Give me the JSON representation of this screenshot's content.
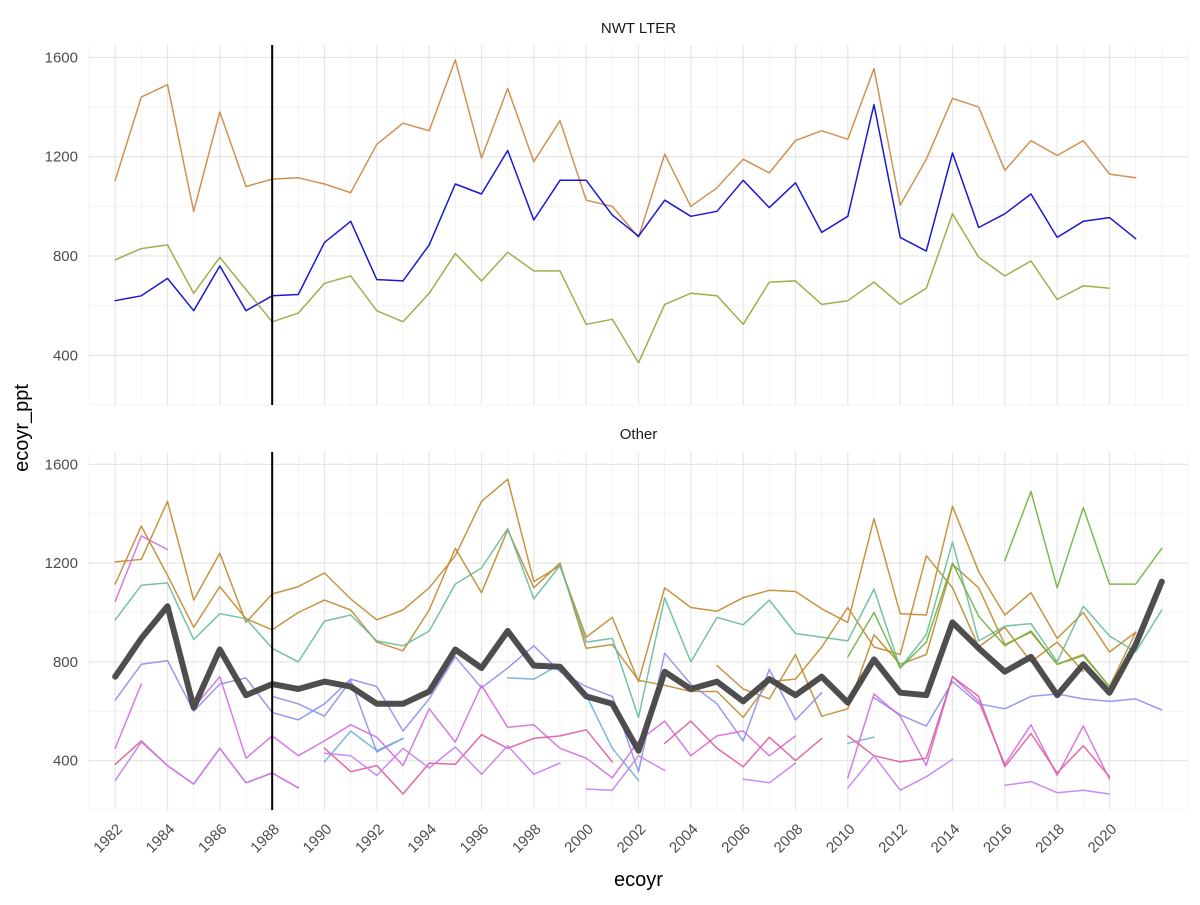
{
  "chart_data": {
    "type": "line",
    "facet_by": "panel",
    "xlabel": "ecoyr",
    "ylabel": "ecoyr_ppt",
    "x_ticks": [
      1982,
      1984,
      1986,
      1988,
      1990,
      1992,
      1994,
      1996,
      1998,
      2000,
      2002,
      2004,
      2006,
      2008,
      2010,
      2012,
      2014,
      2016,
      2018,
      2020
    ],
    "y_ticks": [
      400,
      800,
      1200,
      1600
    ],
    "xlim": [
      1981,
      2023
    ],
    "ylim": [
      200,
      1650
    ],
    "grid": true,
    "legend": "none",
    "vline_x": 1988,
    "panels": [
      {
        "title": "NWT LTER",
        "series": [
          {
            "color": "#CD853F",
            "width": 1.5,
            "start": 1982,
            "values": [
              1105,
              1440,
              1490,
              980,
              1380,
              1080,
              1110,
              1115,
              1090,
              1055,
              1250,
              1335,
              1305,
              1590,
              1195,
              1475,
              1180,
              1345,
              1025,
              1000,
              875,
              1210,
              1000,
              1075,
              1190,
              1135,
              1265,
              1305,
              1270,
              1555,
              1005,
              1190,
              1435,
              1400,
              1145,
              1265,
              1205,
              1265,
              1130,
              1115
            ]
          },
          {
            "color": "#0000CD",
            "width": 1.5,
            "start": 1982,
            "values": [
              620,
              640,
              710,
              580,
              760,
              580,
              640,
              645,
              855,
              940,
              705,
              700,
              845,
              1090,
              1050,
              1225,
              945,
              1105,
              1105,
              965,
              880,
              1025,
              960,
              980,
              1105,
              995,
              1095,
              895,
              960,
              1410,
              875,
              820,
              1215,
              915,
              970,
              1050,
              875,
              940,
              955,
              870
            ]
          },
          {
            "color": "#8FA83A",
            "width": 1.5,
            "start": 1982,
            "values": [
              785,
              830,
              845,
              650,
              795,
              665,
              535,
              570,
              690,
              720,
              580,
              535,
              650,
              810,
              700,
              815,
              740,
              740,
              525,
              545,
              370,
              605,
              650,
              640,
              525,
              695,
              700,
              605,
              620,
              695,
              605,
              670,
              970,
              795,
              720,
              780,
              625,
              680,
              670
            ]
          }
        ]
      },
      {
        "title": "Other",
        "series": [
          {
            "color": "#C08A2E",
            "width": 1.5,
            "start": 1982,
            "values": [
              1205,
              1215,
              1450,
              1050,
              1240,
              960,
              1075,
              1105,
              1160,
              1055,
              970,
              1010,
              1100,
              1230,
              1450,
              1540,
              1125,
              1190,
              900,
              980,
              720,
              1100,
              1020,
              1005,
              1060,
              1090,
              1085,
              1015,
              960,
              1380,
              995,
              990,
              1430,
              1165,
              990,
              1080,
              895,
              1000,
              840,
              920
            ]
          },
          {
            "color": "#C08A2E",
            "width": 1.5,
            "start": 1982,
            "values": [
              1115,
              1350,
              1150,
              940,
              1105,
              975,
              930,
              1000,
              1050,
              1010,
              880,
              845,
              1010,
              1260,
              1080,
              1335,
              1100,
              1200,
              855,
              870,
              725,
              705,
              680,
              680,
              575,
              720,
              730,
              860,
              1020,
              860,
              830,
              1230,
              1100,
              860,
              940,
              800,
              880,
              760
            ]
          },
          {
            "color": "#C08A2E",
            "width": 1.5,
            "start": 2005,
            "values": [
              785,
              690,
              650,
              830,
              580,
              610,
              910,
              790,
              830,
              1195,
              1100,
              870,
              920,
              790,
              830,
              700,
              920
            ]
          },
          {
            "color": "#66BB99",
            "width": 1.5,
            "start": 1982,
            "values": [
              970,
              1110,
              1120,
              890,
              995,
              975,
              855,
              800,
              965,
              990,
              885,
              865,
              925,
              1115,
              1180,
              1340,
              1055,
              1190,
              880,
              895,
              575,
              1060,
              800,
              980,
              950,
              1050,
              915,
              900,
              885,
              1095,
              775,
              910,
              1285,
              885,
              945,
              955,
              800,
              1025,
              905,
              840,
              1010
            ]
          },
          {
            "color": "#6DB33F",
            "width": 1.5,
            "start": 2016,
            "values": [
              1210,
              1490,
              1100,
              1425,
              1115,
              1115,
              1260
            ]
          },
          {
            "color": "#6DB33F",
            "width": 1.5,
            "start": 2010,
            "values": [
              820,
              1000,
              775,
              880,
              1200,
              985,
              865,
              925,
              790,
              825,
              700,
              855
            ]
          },
          {
            "color": "#8B8FEE",
            "width": 1.5,
            "start": 1982,
            "values": [
              645,
              790,
              805,
              600,
              710,
              735,
              595,
              565,
              630,
              730,
              700,
              520,
              650,
              820,
              695,
              775,
              865,
              760,
              700,
              660,
              355,
              835,
              710,
              630,
              480,
              770,
              565,
              675
            ]
          },
          {
            "color": "#8B8FEE",
            "width": 1.5,
            "start": 1988,
            "values": [
              660,
              630,
              580,
              725,
              435,
              490
            ]
          },
          {
            "color": "#8B8FEE",
            "width": 1.5,
            "start": 2011,
            "values": [
              655,
              585,
              540,
              720,
              630,
              610,
              660,
              670,
              650,
              640,
              650,
              605
            ]
          },
          {
            "color": "#6AAEE0",
            "width": 1.5,
            "start": 1990,
            "values": [
              395,
              520,
              440,
              490
            ]
          },
          {
            "color": "#6AAEE0",
            "width": 1.5,
            "start": 1997,
            "values": [
              735,
              730,
              790,
              665,
              450,
              320
            ]
          },
          {
            "color": "#6AAEE0",
            "width": 1.5,
            "start": 2010,
            "values": [
              470,
              495
            ]
          },
          {
            "color": "#D36BE0",
            "width": 1.5,
            "start": 1982,
            "values": [
              1045,
              1310,
              1255
            ]
          },
          {
            "color": "#D36BE0",
            "width": 1.5,
            "start": 1982,
            "values": [
              450,
              710
            ]
          },
          {
            "color": "#D36BE0",
            "width": 1.5,
            "start": 1985,
            "values": [
              615,
              740,
              410,
              500,
              420,
              480,
              545,
              495,
              380,
              610,
              475,
              705,
              535,
              545,
              450,
              410,
              330,
              480,
              560,
              420,
              500,
              520,
              420,
              500
            ]
          },
          {
            "color": "#D36BE0",
            "width": 1.5,
            "start": 2010,
            "values": [
              330,
              670,
              580,
              380,
              740,
              640,
              385,
              545,
              340,
              540,
              325
            ]
          },
          {
            "color": "#E05A9A",
            "width": 1.5,
            "start": 1982,
            "values": [
              385,
              480,
              380,
              305,
              450,
              310,
              350,
              290
            ]
          },
          {
            "color": "#E05A9A",
            "width": 1.5,
            "start": 1990,
            "values": [
              450,
              355,
              380,
              265,
              390,
              385,
              505,
              450,
              490,
              500,
              525,
              395
            ]
          },
          {
            "color": "#E05A9A",
            "width": 1.5,
            "start": 2003,
            "values": [
              470,
              560,
              450,
              375,
              495,
              400,
              490
            ]
          },
          {
            "color": "#E05A9A",
            "width": 1.5,
            "start": 2010,
            "values": [
              500,
              420,
              395,
              410,
              740,
              660,
              375,
              510,
              350,
              460,
              335
            ]
          },
          {
            "color": "#C77DEE",
            "width": 1.5,
            "start": 1982,
            "values": [
              320,
              475,
              380,
              305,
              450,
              310,
              350,
              290
            ]
          },
          {
            "color": "#C77DEE",
            "width": 1.5,
            "start": 1990,
            "values": [
              430,
              420,
              340,
              450,
              370,
              455,
              345,
              460,
              345,
              390
            ]
          },
          {
            "color": "#C77DEE",
            "width": 1.5,
            "start": 2000,
            "values": [
              285,
              280,
              420,
              360
            ]
          },
          {
            "color": "#C77DEE",
            "width": 1.5,
            "start": 2006,
            "values": [
              325,
              310,
              390
            ]
          },
          {
            "color": "#C77DEE",
            "width": 1.5,
            "start": 2010,
            "values": [
              290,
              420,
              280,
              335,
              405
            ]
          },
          {
            "color": "#C77DEE",
            "width": 1.5,
            "start": 2016,
            "values": [
              300,
              315,
              270,
              280,
              265
            ]
          },
          {
            "color": "#444444",
            "width": 6,
            "start": 1982,
            "values": [
              740,
              895,
              1025,
              615,
              850,
              665,
              710,
              690,
              720,
              700,
              630,
              630,
              680,
              850,
              775,
              925,
              785,
              780,
              660,
              630,
              440,
              760,
              690,
              720,
              640,
              730,
              665,
              740,
              635,
              810,
              675,
              665,
              960,
              855,
              760,
              820,
              665,
              790,
              675,
              870,
              1125
            ]
          }
        ]
      }
    ]
  }
}
